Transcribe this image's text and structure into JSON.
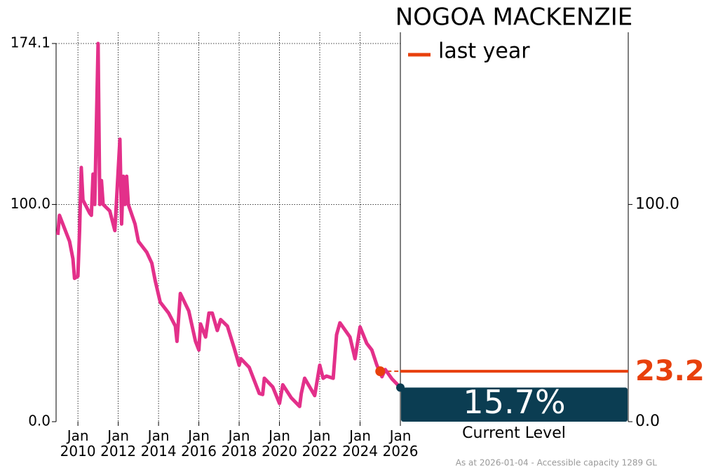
{
  "chart_data": {
    "type": "line",
    "title": "NOGOA MACKENZIE",
    "x": [
      "2009-01",
      "2009-02",
      "2009-04",
      "2009-08",
      "2009-10",
      "2009-11",
      "2010-01",
      "2010-02",
      "2010-03",
      "2010-04",
      "2010-08",
      "2010-09",
      "2010-10",
      "2010-11",
      "2011-01",
      "2011-02",
      "2011-03",
      "2011-04",
      "2011-08",
      "2011-11",
      "2012-02",
      "2012-03",
      "2012-04",
      "2012-05",
      "2012-06",
      "2012-07",
      "2012-11",
      "2013-01",
      "2013-06",
      "2013-09",
      "2013-11",
      "2014-02",
      "2014-07",
      "2014-11",
      "2014-12",
      "2015-02",
      "2015-07",
      "2015-11",
      "2016-01",
      "2016-02",
      "2016-05",
      "2016-07",
      "2016-09",
      "2016-12",
      "2017-02",
      "2017-06",
      "2017-10",
      "2018-01",
      "2018-02",
      "2018-07",
      "2019-01",
      "2019-03",
      "2019-04",
      "2019-09",
      "2020-01",
      "2020-03",
      "2020-08",
      "2021-01",
      "2021-02",
      "2021-04",
      "2021-10",
      "2022-01",
      "2022-03",
      "2022-05",
      "2022-09",
      "2022-11",
      "2023-01",
      "2023-07",
      "2023-10",
      "2024-01",
      "2024-05",
      "2024-08",
      "2024-11",
      "2025-02",
      "2025-04",
      "2025-08",
      "2026-01"
    ],
    "values": [
      86,
      95,
      91,
      83,
      75,
      66,
      67,
      88,
      117,
      102,
      96,
      95,
      114,
      100,
      174.1,
      100,
      111,
      100,
      97,
      88,
      130,
      91,
      113,
      100,
      113,
      100,
      91,
      83,
      78,
      73,
      65,
      55,
      50,
      44,
      37,
      59,
      51,
      37,
      33,
      45,
      39,
      50,
      50,
      42,
      47,
      44,
      34,
      26,
      29,
      25,
      13,
      12.5,
      20,
      16,
      8.4,
      17,
      11,
      7,
      13,
      20,
      12,
      26,
      20,
      21,
      20,
      40,
      45.5,
      39,
      29,
      43.6,
      36,
      33,
      26,
      20.7,
      24,
      19.7,
      15.7
    ],
    "color": "#e3308a",
    "xlim": [
      "2008-12",
      "2026-01"
    ],
    "xticks": [
      {
        "value": "2010-01",
        "label": "Jan\n2010"
      },
      {
        "value": "2012-01",
        "label": "Jan\n2012"
      },
      {
        "value": "2014-01",
        "label": "Jan\n2014"
      },
      {
        "value": "2016-01",
        "label": "Jan\n2016"
      },
      {
        "value": "2018-01",
        "label": "Jan\n2018"
      },
      {
        "value": "2020-01",
        "label": "Jan\n2020"
      },
      {
        "value": "2022-01",
        "label": "Jan\n2022"
      },
      {
        "value": "2024-01",
        "label": "Jan\n2024"
      },
      {
        "value": "2026-01",
        "label": "Jan\n2026"
      }
    ],
    "ylim": [
      0,
      174.1
    ],
    "yticks": [
      {
        "value": 0,
        "label": "0.0"
      },
      {
        "value": 100,
        "label": "100.0"
      },
      {
        "value": 174.1,
        "label": "174.1"
      }
    ],
    "y2lim": [
      0,
      174.1
    ],
    "y2ticks": [
      {
        "value": 0,
        "label": "0.0"
      },
      {
        "value": 100,
        "label": "100.0"
      }
    ],
    "grid": true,
    "last_year": {
      "name": "last year",
      "x": "2025-01",
      "value": 23.2,
      "color": "#e8400c"
    },
    "current": {
      "value": 15.7,
      "value_label": "15.7%",
      "label": "Current Level",
      "color": "#0b3d52"
    },
    "note": "As at 2026-01-04 - Accessible capacity 1289 GL"
  }
}
